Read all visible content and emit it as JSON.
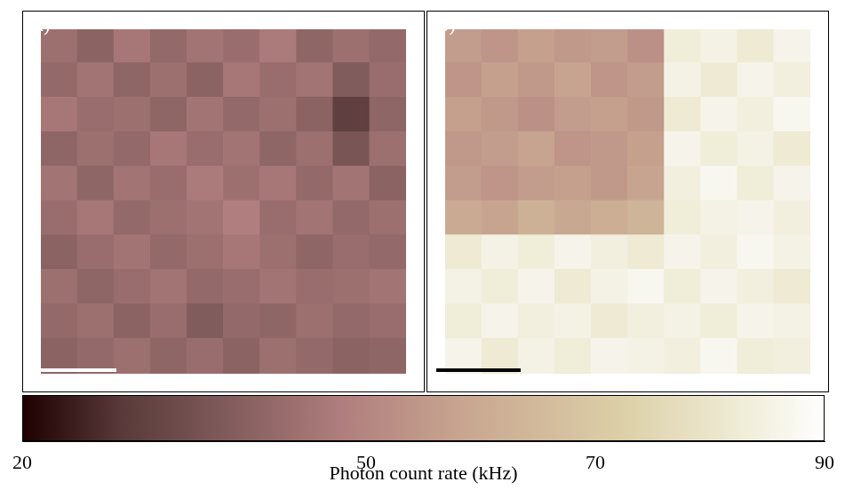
{
  "chart_data": {
    "type": "heatmap",
    "tick_labels": false,
    "panels": [
      {
        "label": "(a)",
        "cells": [
          [
            44,
            40,
            46,
            42,
            45,
            43,
            47,
            41,
            44,
            42
          ],
          [
            42,
            45,
            41,
            44,
            40,
            46,
            43,
            45,
            38,
            43
          ],
          [
            46,
            43,
            44,
            41,
            45,
            42,
            44,
            40,
            30,
            41
          ],
          [
            41,
            44,
            42,
            46,
            43,
            45,
            41,
            44,
            36,
            44
          ],
          [
            45,
            41,
            45,
            43,
            47,
            44,
            46,
            42,
            45,
            40
          ],
          [
            43,
            46,
            42,
            44,
            45,
            48,
            43,
            45,
            42,
            44
          ],
          [
            40,
            43,
            45,
            42,
            44,
            46,
            44,
            41,
            43,
            42
          ],
          [
            44,
            41,
            43,
            45,
            42,
            43,
            45,
            43,
            44,
            45
          ],
          [
            42,
            44,
            40,
            43,
            38,
            42,
            41,
            44,
            42,
            43
          ],
          [
            40,
            42,
            44,
            41,
            43,
            40,
            44,
            42,
            40,
            41
          ]
        ]
      },
      {
        "label": "(b)",
        "cells": [
          [
            56,
            54,
            57,
            55,
            56,
            53,
            83,
            85,
            82,
            86
          ],
          [
            54,
            57,
            55,
            58,
            54,
            56,
            85,
            82,
            86,
            84
          ],
          [
            57,
            55,
            53,
            56,
            57,
            55,
            82,
            86,
            84,
            87
          ],
          [
            55,
            56,
            58,
            54,
            55,
            57,
            86,
            83,
            85,
            82
          ],
          [
            56,
            54,
            56,
            57,
            55,
            58,
            84,
            87,
            83,
            86
          ],
          [
            60,
            58,
            62,
            59,
            61,
            63,
            83,
            85,
            86,
            84
          ],
          [
            82,
            85,
            83,
            86,
            84,
            82,
            86,
            84,
            87,
            85
          ],
          [
            85,
            83,
            86,
            82,
            85,
            87,
            83,
            86,
            84,
            82
          ],
          [
            83,
            86,
            84,
            85,
            82,
            84,
            85,
            83,
            86,
            85
          ],
          [
            86,
            82,
            85,
            83,
            86,
            85,
            84,
            87,
            83,
            84
          ]
        ]
      }
    ],
    "colorbar": {
      "range": [
        20,
        90
      ],
      "ticks": [
        20,
        50,
        70,
        90
      ],
      "label": "Photon count rate (kHz)"
    }
  }
}
